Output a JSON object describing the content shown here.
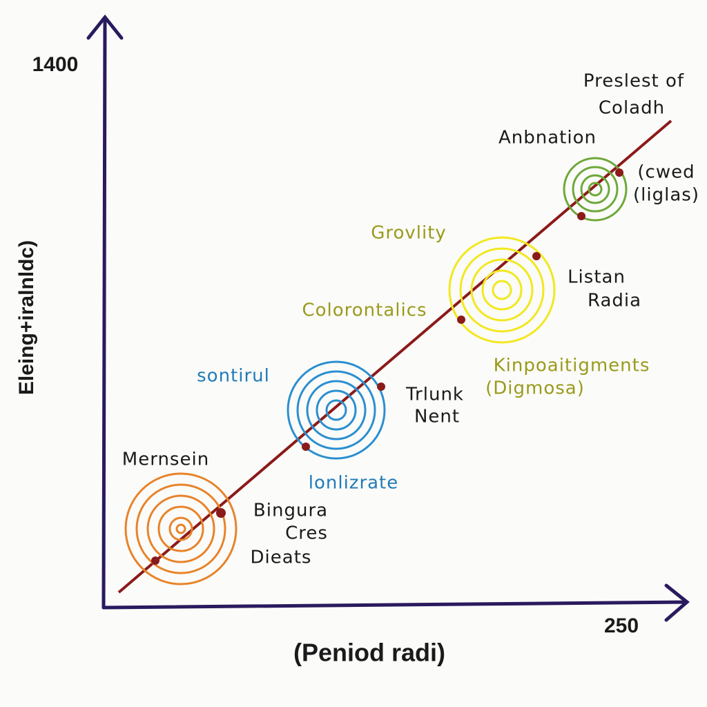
{
  "axes": {
    "y_top_label": 1400,
    "x_end_label": 250,
    "y_title": "Eleing+iralnldc)",
    "x_title": "(Peniod radi)"
  },
  "labels": {
    "top_right": [
      "Preslest of",
      "Coladh"
    ],
    "green": {
      "title": "Anbnation",
      "note": [
        "(cwed",
        "(liglas)"
      ]
    },
    "yellow": {
      "title": "Grovlity",
      "note": [
        "Listan",
        "Radia"
      ],
      "below": [
        "Kinpoaitigments",
        "(Digmosa)"
      ]
    },
    "middle": "Colorontalics",
    "blue": {
      "title": "sontirul",
      "note": [
        "Trlunk",
        "Nent"
      ],
      "below": "lonlizrate"
    },
    "orange": {
      "title": "Mernsein",
      "note": [
        "Bingura",
        "Cres",
        "Dieats"
      ]
    }
  }
}
